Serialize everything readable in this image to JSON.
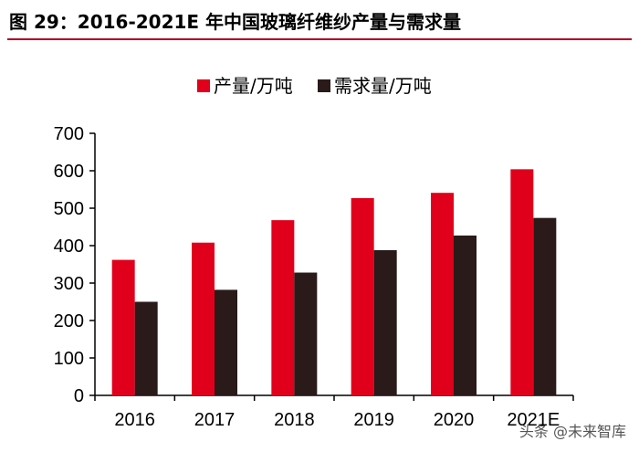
{
  "chart_data": {
    "type": "bar",
    "title": "图 29：2016-2021E 年中国玻璃纤维纱产量与需求量",
    "categories": [
      "2016",
      "2017",
      "2018",
      "2019",
      "2020",
      "2021E"
    ],
    "series": [
      {
        "name": "产量/万吨",
        "color": "#e0001b",
        "values": [
          362,
          408,
          468,
          527,
          541,
          604
        ]
      },
      {
        "name": "需求量/万吨",
        "color": "#2a1a1a",
        "values": [
          250,
          282,
          328,
          388,
          427,
          474
        ]
      }
    ],
    "ylim": [
      0,
      700
    ],
    "yticks": [
      "0",
      "100",
      "200",
      "300",
      "400",
      "500",
      "600",
      "700"
    ],
    "xlabel": "",
    "ylabel": "",
    "legend_position": "top-center",
    "grid": false
  },
  "watermark": "头条 @未来智库",
  "colors": {
    "title_rule": "#b0001e",
    "axis": "#000000"
  }
}
